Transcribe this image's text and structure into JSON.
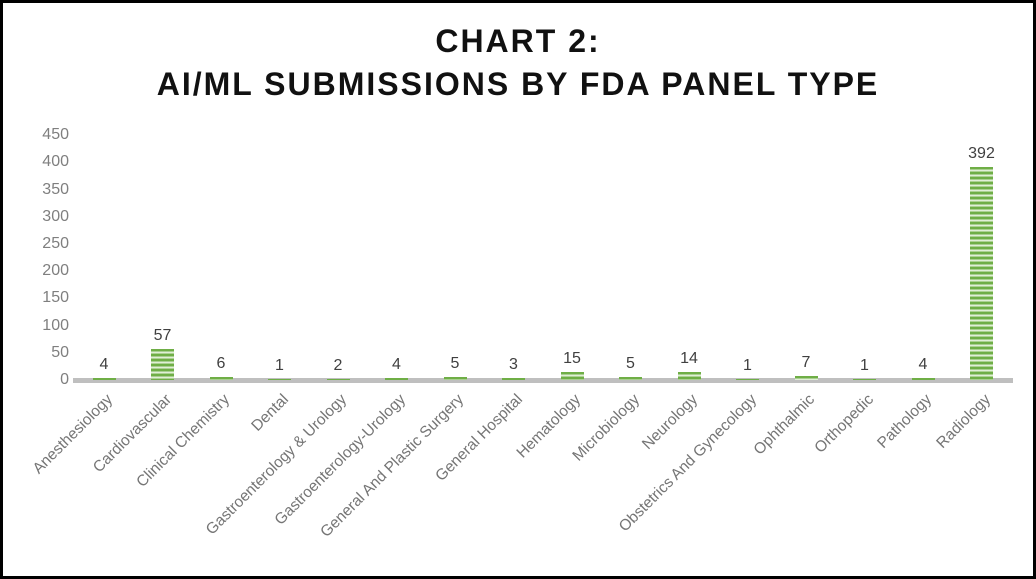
{
  "title": {
    "line1": "CHART 2:",
    "line2": "AI/ML SUBMISSIONS BY FDA PANEL TYPE"
  },
  "chart_data": {
    "type": "bar",
    "title": "CHART 2: AI/ML SUBMISSIONS BY FDA PANEL TYPE",
    "categories": [
      "Anesthesiology",
      "Cardiovascular",
      "Clinical Chemistry",
      "Dental",
      "Gastroenterology & Urology",
      "Gastroenterology-Urology",
      "General And Plastic Surgery",
      "General Hospital",
      "Hematology",
      "Microbiology",
      "Neurology",
      "Obstetrics And Gynecology",
      "Ophthalmic",
      "Orthopedic",
      "Pathology",
      "Radiology"
    ],
    "values": [
      4,
      57,
      6,
      1,
      2,
      4,
      5,
      3,
      15,
      5,
      14,
      1,
      7,
      1,
      4,
      392
    ],
    "xlabel": "",
    "ylabel": "",
    "ylim": [
      0,
      450
    ],
    "yticks": [
      0,
      50,
      100,
      150,
      200,
      250,
      300,
      350,
      400,
      450
    ],
    "grid": false,
    "legend": false,
    "data_labels": true,
    "bar_style": "horizontal-stripe-pattern",
    "colors": {
      "bar_green": "#70ad47",
      "bar_stripe_light": "#eef6e8",
      "bar_stripe_mid": "#c2dfae",
      "axis_line": "#bfbfbf",
      "tick_label": "#7f7f7f",
      "category_label": "#757575",
      "value_label": "#404040",
      "title_text": "#111111",
      "frame_border": "#000000",
      "background": "#ffffff"
    }
  }
}
